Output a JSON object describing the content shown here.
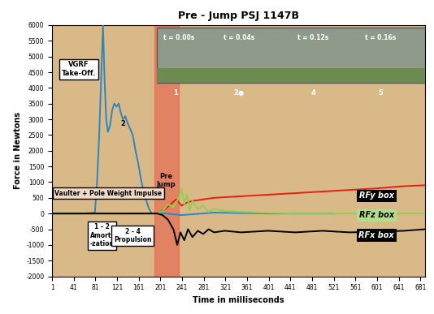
{
  "chart_data": {
    "type": "line",
    "title": "Pre - Jump PSJ 1147B",
    "x_label": "Time in milliseconds",
    "y_label": "Force in Newtons",
    "xlim": [
      1,
      690
    ],
    "ylim": [
      -2000,
      6000
    ],
    "xticks": [
      1,
      41,
      81,
      121,
      161,
      201,
      241,
      281,
      321,
      361,
      401,
      441,
      481,
      521,
      561,
      601,
      641,
      681
    ],
    "yticks": [
      -2000,
      -1500,
      -1000,
      -500,
      0,
      500,
      1000,
      1500,
      2000,
      2500,
      3000,
      3500,
      4000,
      4500,
      5000,
      5500,
      6000
    ],
    "grid": false,
    "pre_jump_span": [
      190,
      235
    ],
    "series": [
      {
        "name": "VGRF",
        "color": "#2e86c1",
        "x": [
          1,
          60,
          80,
          84,
          88,
          92,
          95,
          98,
          101,
          104,
          108,
          112,
          116,
          120,
          124,
          128,
          132,
          136,
          140,
          145,
          150,
          155,
          160,
          165,
          170,
          175,
          180,
          185,
          200,
          240,
          300,
          400,
          500,
          520
        ],
        "values": [
          0,
          0,
          30,
          1000,
          2500,
          4500,
          6000,
          4200,
          3000,
          2600,
          2800,
          3300,
          3500,
          3400,
          3500,
          3200,
          3000,
          3100,
          2900,
          2700,
          2500,
          2000,
          1600,
          1100,
          700,
          400,
          150,
          0,
          20,
          -50,
          30,
          0,
          0,
          0
        ]
      },
      {
        "name": "RFy box",
        "color": "#e82010",
        "x": [
          1,
          195,
          200,
          210,
          220,
          230,
          240,
          250,
          260,
          280,
          300,
          350,
          400,
          450,
          500,
          550,
          600,
          650,
          690
        ],
        "values": [
          0,
          0,
          50,
          150,
          300,
          450,
          250,
          350,
          400,
          450,
          500,
          550,
          600,
          650,
          700,
          750,
          800,
          870,
          900
        ]
      },
      {
        "name": "RFz box",
        "color": "#8fd14f",
        "x": [
          1,
          195,
          205,
          215,
          225,
          235,
          240,
          245,
          250,
          255,
          260,
          270,
          280,
          290,
          300,
          320,
          350,
          400,
          450,
          500,
          600,
          690
        ],
        "values": [
          0,
          0,
          80,
          300,
          200,
          500,
          800,
          300,
          600,
          100,
          400,
          150,
          250,
          50,
          150,
          80,
          50,
          20,
          0,
          0,
          0,
          0
        ]
      },
      {
        "name": "RFx box",
        "color": "#000000",
        "x": [
          1,
          195,
          205,
          215,
          225,
          232,
          238,
          245,
          252,
          260,
          270,
          280,
          290,
          300,
          320,
          350,
          400,
          450,
          500,
          550,
          600,
          650,
          690
        ],
        "values": [
          0,
          0,
          -50,
          -200,
          -500,
          -1000,
          -600,
          -850,
          -500,
          -750,
          -550,
          -650,
          -500,
          -600,
          -550,
          -600,
          -550,
          -600,
          -550,
          -600,
          -580,
          -550,
          -500
        ]
      }
    ],
    "annotations": [
      "VGRF\nTake-Off.",
      "2",
      "Vaulter + Pole Weight Impulse",
      "1 - 2\nAmorti\n-zation",
      "2 - 4\nPropulsion",
      "Pre\nJump",
      "t = 0.00s",
      "t = 0.04s",
      "t = 0.12s",
      "t = 0.16s",
      "1",
      "2●",
      "4",
      "5"
    ]
  }
}
